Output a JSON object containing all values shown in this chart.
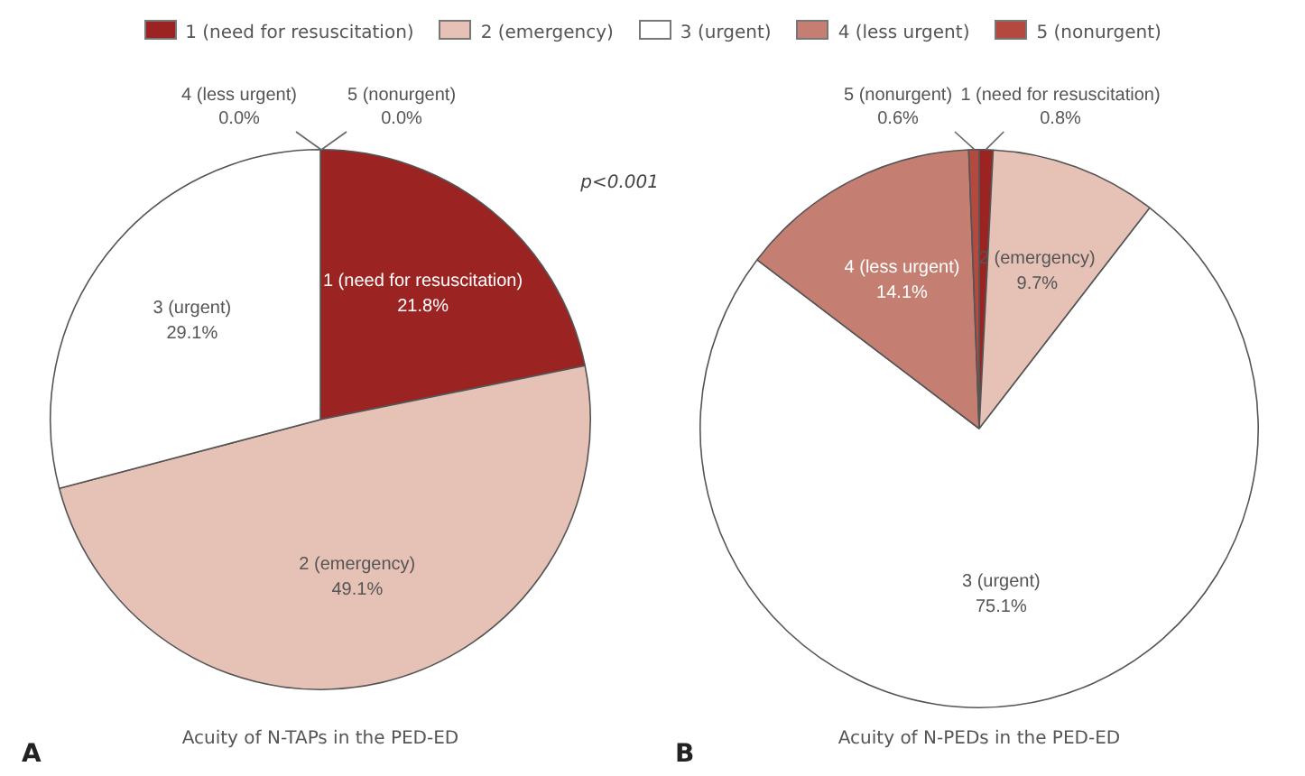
{
  "chart_data": [
    {
      "type": "pie",
      "title": "Acuity of N-TAPs in the PED-ED",
      "categories": [
        "1 (need for resuscitation)",
        "2 (emergency)",
        "3 (urgent)",
        "4 (less urgent)",
        "5 (nonurgent)"
      ],
      "values": [
        21.8,
        49.1,
        29.1,
        0.0,
        0.0
      ],
      "value_labels": [
        "21.8%",
        "49.1%",
        "29.1%",
        "0.0%",
        "0.0%"
      ],
      "colors": [
        "#9b2423",
        "#e6c1b6",
        "#ffffff",
        "#c47f72",
        "#b4493f"
      ],
      "legend": "top",
      "annotations": [
        "p<0.001",
        "A"
      ]
    },
    {
      "type": "pie",
      "title": "Acuity of N-PEDs in the PED-ED",
      "categories": [
        "1 (need for resuscitation)",
        "2 (emergency)",
        "3 (urgent)",
        "4 (less urgent)",
        "5 (nonurgent)"
      ],
      "values": [
        0.8,
        9.7,
        75.1,
        14.1,
        0.6
      ],
      "value_labels": [
        "0.8%",
        "9.7%",
        "75.1%",
        "14.1%",
        "0.6%"
      ],
      "colors": [
        "#9b2423",
        "#e6c1b6",
        "#ffffff",
        "#c47f72",
        "#b4493f"
      ],
      "annotations": [
        "B"
      ]
    }
  ]
}
